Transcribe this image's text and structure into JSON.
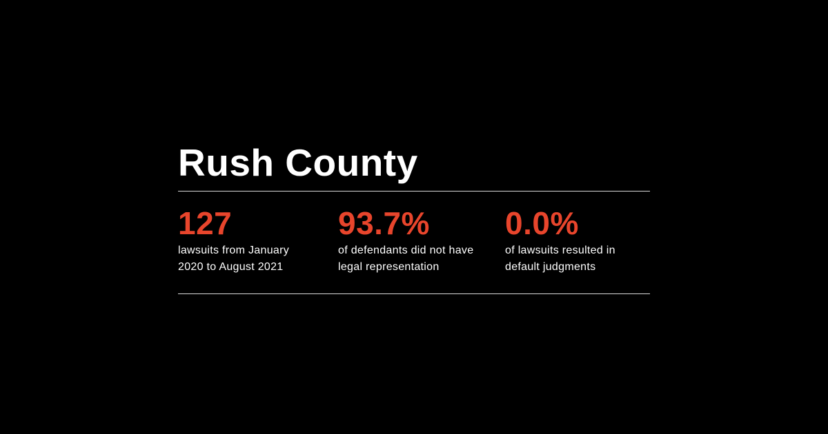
{
  "colors": {
    "background": "#000000",
    "text": "#ffffff",
    "accent": "#e8452c",
    "rule": "#d9d9d9"
  },
  "title": "Rush County",
  "stats": [
    {
      "value": "127",
      "label": "lawsuits from January 2020 to August 2021"
    },
    {
      "value": "93.7%",
      "label": "of defendants did not have legal representation"
    },
    {
      "value": "0.0%",
      "label": "of lawsuits resulted in default judgments"
    }
  ]
}
